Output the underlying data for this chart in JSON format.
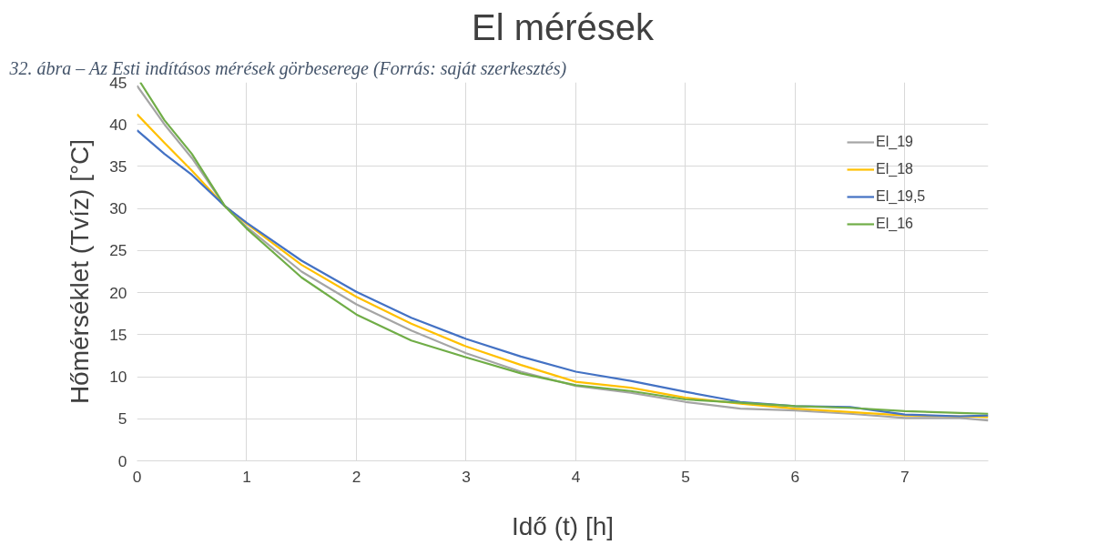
{
  "chart_data": {
    "type": "line",
    "title": "El mérések",
    "xlabel": "Idő (t) [h]",
    "ylabel": "Hőmérséklet (Tvíz) [°C]",
    "annotations": [
      "32. ábra – Az Esti indításos mérések görbeserege (Forrás: saját szerkesztés)"
    ],
    "x": [
      0,
      0.25,
      0.5,
      0.8,
      1,
      1.5,
      2,
      2.5,
      3,
      3.5,
      4,
      4.5,
      5,
      5.5,
      6,
      6.5,
      7,
      7.5,
      7.76
    ],
    "series": [
      {
        "name": "El_19",
        "color": "#a5a5a5",
        "values": [
          44.6,
          40.0,
          36.0,
          30.3,
          27.8,
          22.5,
          18.6,
          15.5,
          12.8,
          10.6,
          8.9,
          8.1,
          7.0,
          6.2,
          6.0,
          5.6,
          5.1,
          5.1,
          4.8
        ]
      },
      {
        "name": "El_18",
        "color": "#ffc000",
        "values": [
          41.2,
          37.8,
          34.5,
          30.3,
          28.2,
          23.3,
          19.5,
          16.3,
          13.6,
          11.4,
          9.4,
          8.7,
          7.5,
          6.8,
          6.2,
          5.8,
          5.4,
          5.3,
          5.2
        ]
      },
      {
        "name": "El_19,5",
        "color": "#4472c4",
        "values": [
          39.3,
          36.5,
          34.0,
          30.3,
          28.3,
          23.8,
          20.1,
          17.0,
          14.5,
          12.4,
          10.6,
          9.5,
          8.2,
          7.0,
          6.5,
          6.4,
          5.5,
          5.3,
          5.4
        ]
      },
      {
        "name": "El_16",
        "color": "#70ad47",
        "x": [
          0.03,
          0.25,
          0.5,
          0.8,
          1,
          1.5,
          2,
          2.5,
          3,
          3.5,
          4,
          4.5,
          5,
          5.5,
          6,
          6.5,
          7,
          7.5,
          7.76
        ],
        "values": [
          45.0,
          40.5,
          36.5,
          30.3,
          27.6,
          21.8,
          17.4,
          14.3,
          12.3,
          10.4,
          9.0,
          8.3,
          7.3,
          6.9,
          6.5,
          6.3,
          5.9,
          5.7,
          5.6
        ]
      }
    ],
    "xlim": [
      0,
      7.76
    ],
    "ylim": [
      0,
      45
    ],
    "xticks": [
      0,
      1,
      2,
      3,
      4,
      5,
      6,
      7
    ],
    "yticks": [
      0,
      5,
      10,
      15,
      20,
      25,
      30,
      35,
      40,
      45
    ],
    "grid": true,
    "legend": "right",
    "line_style": "solid",
    "marker": "none"
  }
}
